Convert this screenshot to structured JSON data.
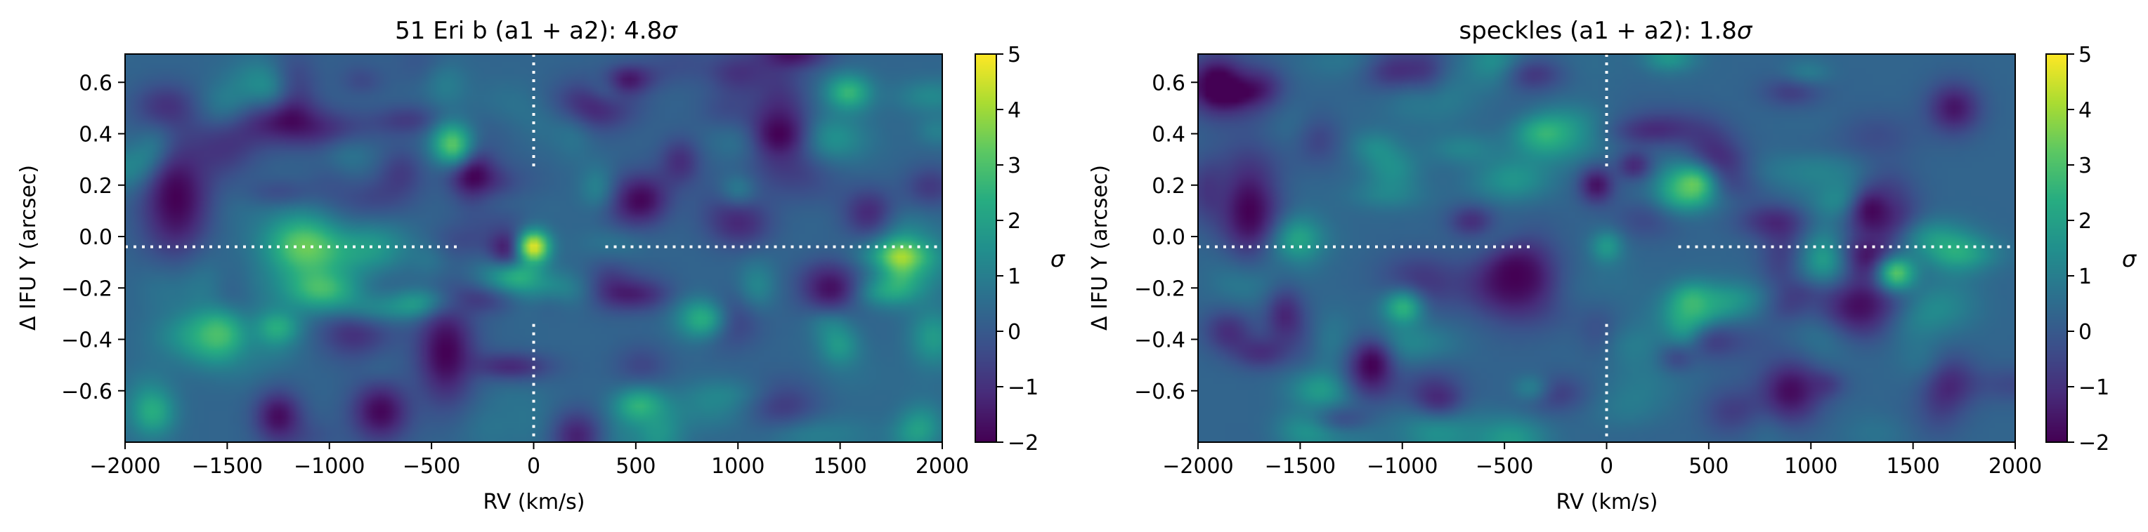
{
  "chart_data": [
    {
      "type": "heatmap",
      "id": "left",
      "title": "51 Eri b (a1 + a2): 4.8",
      "title_symbol": "σ",
      "xlabel": "RV (km/s)",
      "ylabel": "Δ IFU Y (arcsec)",
      "xlim": [
        -2000,
        2000
      ],
      "ylim": [
        -0.8,
        0.71
      ],
      "xticks": [
        -2000,
        -1500,
        -1000,
        -500,
        0,
        500,
        1000,
        1500,
        2000
      ],
      "xtick_labels": [
        "−2000",
        "−1500",
        "−1000",
        "−500",
        "0",
        "500",
        "1000",
        "1500",
        "2000"
      ],
      "yticks": [
        0.6,
        0.4,
        0.2,
        0.0,
        -0.2,
        -0.4,
        -0.6
      ],
      "ytick_labels": [
        "0.6",
        "0.4",
        "0.2",
        "0.0",
        "−0.2",
        "−0.4",
        "−0.6"
      ],
      "colorbar": {
        "label": "σ",
        "range": [
          -2,
          5
        ],
        "ticks": [
          5,
          4,
          3,
          2,
          1,
          0,
          -1,
          -2
        ],
        "tick_labels": [
          "5",
          "4",
          "3",
          "2",
          "1",
          "0",
          "−1",
          "−2"
        ]
      },
      "crosshair": {
        "x": 0,
        "y": -0.04
      },
      "peak": {
        "x": 0,
        "y": -0.04,
        "value": 4.8
      },
      "features": [
        {
          "x": -400,
          "y": 0.36,
          "value": 3.2,
          "sx": 70,
          "sy": 0.06
        },
        {
          "x": -1550,
          "y": -0.38,
          "value": 3.0,
          "sx": 120,
          "sy": 0.08
        },
        {
          "x": 520,
          "y": -0.66,
          "value": 2.6,
          "sx": 90,
          "sy": 0.05
        },
        {
          "x": 1540,
          "y": 0.56,
          "value": 2.7,
          "sx": 80,
          "sy": 0.05
        },
        {
          "x": 820,
          "y": -0.32,
          "value": 2.4,
          "sx": 90,
          "sy": 0.06
        },
        {
          "x": -1750,
          "y": 0.15,
          "value": -2.0,
          "sx": 120,
          "sy": 0.16
        },
        {
          "x": -430,
          "y": -0.45,
          "value": -2.0,
          "sx": 100,
          "sy": 0.14
        },
        {
          "x": 1200,
          "y": 0.4,
          "value": -2.0,
          "sx": 110,
          "sy": 0.09
        },
        {
          "x": -750,
          "y": -0.68,
          "value": -1.9,
          "sx": 100,
          "sy": 0.08
        },
        {
          "x": -1250,
          "y": -0.7,
          "value": -1.8,
          "sx": 80,
          "sy": 0.07
        },
        {
          "x": 1450,
          "y": -0.2,
          "value": -1.7,
          "sx": 100,
          "sy": 0.07
        },
        {
          "x": -130,
          "y": -0.04,
          "value": -1.6,
          "sx": 70,
          "sy": 0.05
        }
      ]
    },
    {
      "type": "heatmap",
      "id": "right",
      "title": "speckles (a1 + a2): 1.8",
      "title_symbol": "σ",
      "xlabel": "RV (km/s)",
      "ylabel": "Δ IFU Y (arcsec)",
      "xlim": [
        -2000,
        2000
      ],
      "ylim": [
        -0.8,
        0.71
      ],
      "xticks": [
        -2000,
        -1500,
        -1000,
        -500,
        0,
        500,
        1000,
        1500,
        2000
      ],
      "xtick_labels": [
        "−2000",
        "−1500",
        "−1000",
        "−500",
        "0",
        "500",
        "1000",
        "1500",
        "2000"
      ],
      "yticks": [
        0.6,
        0.4,
        0.2,
        0.0,
        -0.2,
        -0.4,
        -0.6
      ],
      "ytick_labels": [
        "0.6",
        "0.4",
        "0.2",
        "0.0",
        "−0.2",
        "−0.4",
        "−0.6"
      ],
      "colorbar": {
        "label": "σ",
        "range": [
          -2,
          5
        ],
        "ticks": [
          5,
          4,
          3,
          2,
          1,
          0,
          -1,
          -2
        ],
        "tick_labels": [
          "5",
          "4",
          "3",
          "2",
          "1",
          "0",
          "−1",
          "−2"
        ]
      },
      "crosshair": {
        "x": 0,
        "y": -0.04
      },
      "peak": {
        "x": 0,
        "y": -0.04,
        "value": 1.8
      },
      "features": [
        {
          "x": 420,
          "y": 0.2,
          "value": 3.4,
          "sx": 70,
          "sy": 0.05
        },
        {
          "x": 1420,
          "y": -0.14,
          "value": 3.3,
          "sx": 70,
          "sy": 0.05
        },
        {
          "x": 420,
          "y": -0.26,
          "value": 2.8,
          "sx": 70,
          "sy": 0.05
        },
        {
          "x": -1000,
          "y": -0.28,
          "value": 2.6,
          "sx": 70,
          "sy": 0.05
        },
        {
          "x": -1750,
          "y": 0.1,
          "value": -2.0,
          "sx": 120,
          "sy": 0.16
        },
        {
          "x": -1150,
          "y": -0.5,
          "value": -2.0,
          "sx": 90,
          "sy": 0.09
        },
        {
          "x": -450,
          "y": -0.15,
          "value": -2.0,
          "sx": 130,
          "sy": 0.1
        },
        {
          "x": 1300,
          "y": 0.1,
          "value": -1.9,
          "sx": 110,
          "sy": 0.1
        },
        {
          "x": -50,
          "y": 0.2,
          "value": -1.7,
          "sx": 60,
          "sy": 0.05
        },
        {
          "x": 900,
          "y": -0.6,
          "value": -1.8,
          "sx": 100,
          "sy": 0.08
        },
        {
          "x": 1700,
          "y": 0.5,
          "value": -1.6,
          "sx": 90,
          "sy": 0.07
        }
      ]
    }
  ]
}
